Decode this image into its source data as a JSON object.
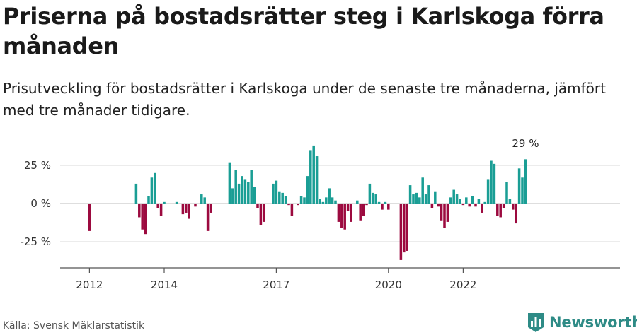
{
  "header": {
    "title": "Priserna på bostadsrätter steg i Karlskoga förra månaden",
    "subtitle": "Prisutveckling för bostadsrätter i Karlskoga under de senaste tre månaderna, jämfört med tre månader tidigare."
  },
  "footer": {
    "source": "Källa: Svensk Mäklarstatistik",
    "brand": "Newsworthy",
    "brand_icon": "bar-chart-logo-icon"
  },
  "colors": {
    "positive": "#1a9e95",
    "negative": "#9c0a3f",
    "grid": "#d9d9d9",
    "axis": "#555555",
    "brand": "#2e8b86"
  },
  "chart_data": {
    "type": "bar",
    "unit": "%",
    "x_start": "2011-12",
    "x_ticks": [
      "2012",
      "2014",
      "2017",
      "2020",
      "2022"
    ],
    "y_ticks": [
      "25 %",
      "0 %",
      "-25 %"
    ],
    "ylim": [
      -40,
      42
    ],
    "grid": true,
    "annotation": "29 %",
    "values": [
      null,
      null,
      null,
      null,
      null,
      null,
      null,
      null,
      null,
      null,
      null,
      null,
      null,
      null,
      null,
      null,
      null,
      null,
      null,
      null,
      null,
      null,
      null,
      null,
      null,
      null,
      null,
      null,
      null,
      null,
      null,
      null,
      null,
      null,
      null,
      null,
      null,
      null,
      null,
      null,
      null,
      null,
      null,
      null,
      null,
      null,
      null,
      null,
      null,
      null,
      null,
      null,
      null,
      null,
      null,
      null,
      null,
      null,
      null,
      null,
      null,
      null,
      null,
      null,
      null,
      null,
      null,
      null,
      null,
      null,
      null,
      null,
      null,
      null,
      null,
      null,
      null,
      null,
      null,
      null,
      null,
      null,
      null,
      null,
      null,
      null,
      null,
      null,
      null,
      null,
      null,
      null,
      null,
      null,
      null,
      null,
      null,
      null,
      null,
      null,
      null,
      null,
      null,
      null,
      null,
      null,
      null,
      null,
      null,
      null,
      null,
      null,
      null,
      null,
      null,
      null,
      null,
      null,
      null,
      null,
      null,
      null,
      null,
      null,
      null,
      null,
      null,
      null,
      null,
      null,
      null,
      null,
      null,
      null,
      null,
      null,
      null,
      null,
      null,
      null,
      null,
      null,
      null,
      null
    ]
  }
}
